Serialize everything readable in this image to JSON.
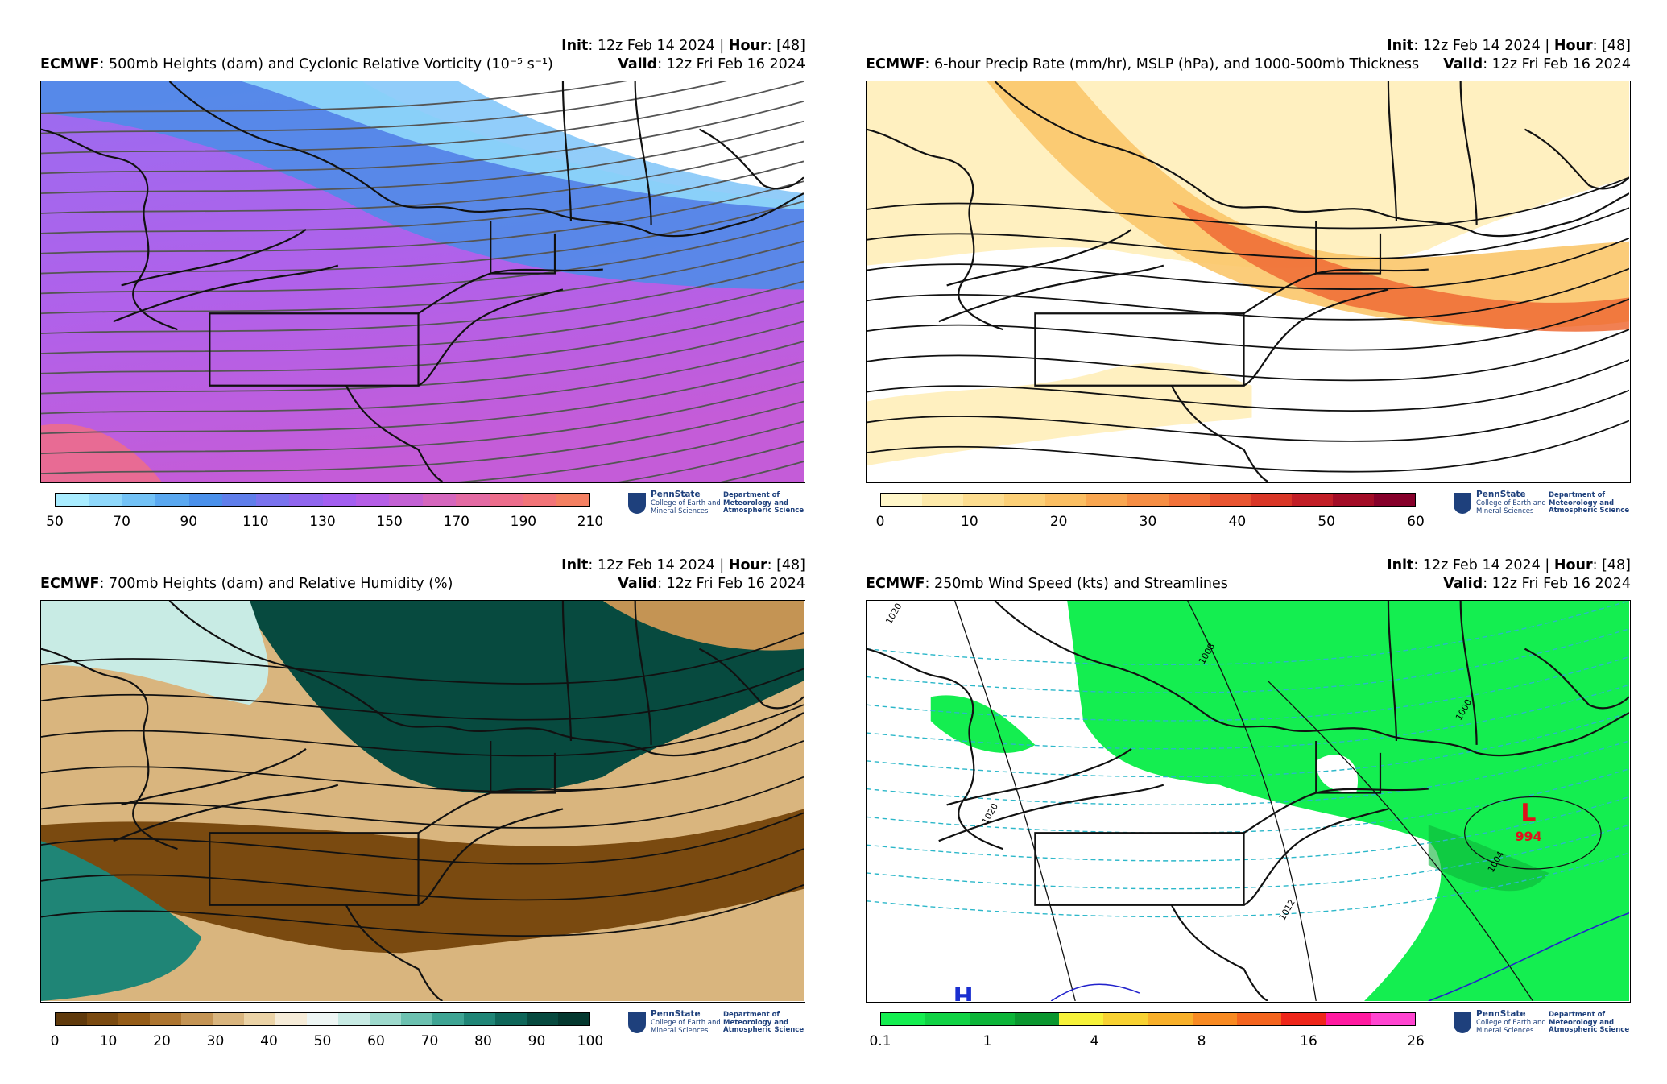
{
  "panels": [
    {
      "init_label": "Init",
      "init_value": ": 12z Feb 14 2024 | ",
      "hour_label": "Hour",
      "hour_value": ": [48]",
      "model": "ECMWF",
      "title": ": 500mb Heights (dam) and Cyclonic Relative Vorticity (10⁻⁵ s⁻¹)",
      "valid_label": "Valid",
      "valid_value": ": 12z Fri Feb 16 2024",
      "colorbar": {
        "colors": [
          "#a9ecff",
          "#8fd8fb",
          "#73c2f6",
          "#5aa8f0",
          "#4a90ea",
          "#5f7eea",
          "#7a73ee",
          "#9066ee",
          "#a35ff0",
          "#b55ee6",
          "#c361d4",
          "#d566bd",
          "#e36aa3",
          "#ec6d8c",
          "#f27478",
          "#f48062"
        ],
        "ticks": [
          "50",
          "70",
          "90",
          "110",
          "130",
          "150",
          "170",
          "190",
          "210"
        ]
      }
    },
    {
      "init_label": "Init",
      "init_value": ": 12z Feb 14 2024 | ",
      "hour_label": "Hour",
      "hour_value": ": [48]",
      "model": "ECMWF",
      "title": ": 6-hour Precip Rate (mm/hr), MSLP (hPa), and 1000-500mb Thickness",
      "valid_label": "Valid",
      "valid_value": ": 12z Fri Feb 16 2024",
      "colorbar": {
        "colors": [
          "#fff6c8",
          "#feeaaa",
          "#fddd8f",
          "#fcd077",
          "#fbbf63",
          "#f9a751",
          "#f68e44",
          "#f2723a",
          "#e85430",
          "#d93626",
          "#c21e26",
          "#a30c26",
          "#86002a"
        ],
        "ticks": [
          "0",
          "10",
          "20",
          "30",
          "40",
          "50",
          "60"
        ]
      }
    },
    {
      "init_label": "Init",
      "init_value": ": 12z Feb 14 2024 | ",
      "hour_label": "Hour",
      "hour_value": ": [48]",
      "model": "ECMWF",
      "title": ": 700mb Heights (dam) and Relative Humidity (%)",
      "valid_label": "Valid",
      "valid_value": ": 12z Fri Feb 16 2024",
      "colorbar": {
        "colors": [
          "#603a0c",
          "#7a4a10",
          "#945c18",
          "#ad7530",
          "#c49454",
          "#d9b57e",
          "#ebd3a6",
          "#f6ecd8",
          "#eef6f4",
          "#c8ebe4",
          "#9dd9cc",
          "#6cc1b0",
          "#3ea493",
          "#1f8576",
          "#0e6659",
          "#074a3f",
          "#04382f"
        ],
        "ticks": [
          "0",
          "10",
          "20",
          "30",
          "40",
          "50",
          "60",
          "70",
          "80",
          "90",
          "100"
        ]
      }
    },
    {
      "init_label": "Init",
      "init_value": ": 12z Feb 14 2024 | ",
      "hour_label": "Hour",
      "hour_value": ": [48]",
      "model": "ECMWF",
      "title": ": 250mb Wind Speed (kts) and Streamlines",
      "valid_label": "Valid",
      "valid_value": ": 12z Fri Feb 16 2024",
      "colorbar": {
        "colors": [
          "#14ee50",
          "#10d244",
          "#0cb438",
          "#0a962e",
          "#f6f23a",
          "#f8d232",
          "#f8b02a",
          "#f88a22",
          "#f4641e",
          "#ee261a",
          "#ff1aa0",
          "#ff44d0"
        ],
        "ticks": [
          "0.1",
          "1",
          "4",
          "8",
          "16",
          "26"
        ]
      },
      "map_labels": {
        "low": "L",
        "low_value": "994",
        "high": "H",
        "isobars": [
          "1020",
          "1008",
          "1000",
          "1004",
          "1012",
          "1020"
        ]
      }
    }
  ],
  "logo": {
    "name": "PennState",
    "college": "College of Earth and Mineral Sciences",
    "dept": "Department of Meteorology and Atmospheric Science"
  }
}
